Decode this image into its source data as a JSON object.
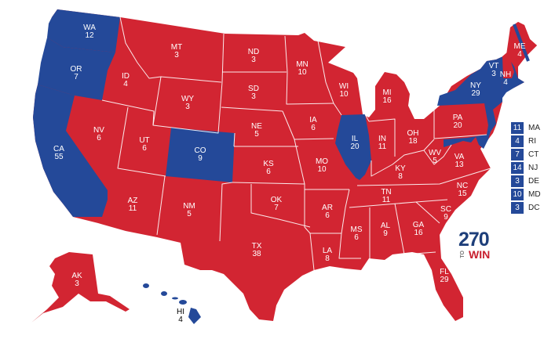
{
  "colors": {
    "republican": "#d22532",
    "democrat": "#244999",
    "border": "#ffffff"
  },
  "states": [
    {
      "abbr": "WA",
      "ev": 12,
      "party": "D"
    },
    {
      "abbr": "OR",
      "ev": 7,
      "party": "D"
    },
    {
      "abbr": "CA",
      "ev": 55,
      "party": "D"
    },
    {
      "abbr": "ID",
      "ev": 4,
      "party": "R"
    },
    {
      "abbr": "NV",
      "ev": 6,
      "party": "R"
    },
    {
      "abbr": "MT",
      "ev": 3,
      "party": "R"
    },
    {
      "abbr": "WY",
      "ev": 3,
      "party": "R"
    },
    {
      "abbr": "UT",
      "ev": 6,
      "party": "R"
    },
    {
      "abbr": "CO",
      "ev": 9,
      "party": "D"
    },
    {
      "abbr": "AZ",
      "ev": 11,
      "party": "R"
    },
    {
      "abbr": "NM",
      "ev": 5,
      "party": "R"
    },
    {
      "abbr": "ND",
      "ev": 3,
      "party": "R"
    },
    {
      "abbr": "SD",
      "ev": 3,
      "party": "R"
    },
    {
      "abbr": "NE",
      "ev": 5,
      "party": "R"
    },
    {
      "abbr": "KS",
      "ev": 6,
      "party": "R"
    },
    {
      "abbr": "OK",
      "ev": 7,
      "party": "R"
    },
    {
      "abbr": "TX",
      "ev": 38,
      "party": "R"
    },
    {
      "abbr": "MN",
      "ev": 10,
      "party": "R"
    },
    {
      "abbr": "IA",
      "ev": 6,
      "party": "R"
    },
    {
      "abbr": "MO",
      "ev": 10,
      "party": "R"
    },
    {
      "abbr": "AR",
      "ev": 6,
      "party": "R"
    },
    {
      "abbr": "LA",
      "ev": 8,
      "party": "R"
    },
    {
      "abbr": "WI",
      "ev": 10,
      "party": "R"
    },
    {
      "abbr": "IL",
      "ev": 20,
      "party": "D"
    },
    {
      "abbr": "MI",
      "ev": 16,
      "party": "R"
    },
    {
      "abbr": "IN",
      "ev": 11,
      "party": "R"
    },
    {
      "abbr": "OH",
      "ev": 18,
      "party": "R"
    },
    {
      "abbr": "KY",
      "ev": 8,
      "party": "R"
    },
    {
      "abbr": "TN",
      "ev": 11,
      "party": "R"
    },
    {
      "abbr": "MS",
      "ev": 6,
      "party": "R"
    },
    {
      "abbr": "AL",
      "ev": 9,
      "party": "R"
    },
    {
      "abbr": "GA",
      "ev": 16,
      "party": "R"
    },
    {
      "abbr": "FL",
      "ev": 29,
      "party": "R"
    },
    {
      "abbr": "SC",
      "ev": 9,
      "party": "R"
    },
    {
      "abbr": "NC",
      "ev": 15,
      "party": "R"
    },
    {
      "abbr": "VA",
      "ev": 13,
      "party": "R"
    },
    {
      "abbr": "WV",
      "ev": 5,
      "party": "R"
    },
    {
      "abbr": "PA",
      "ev": 20,
      "party": "R"
    },
    {
      "abbr": "NY",
      "ev": 29,
      "party": "D"
    },
    {
      "abbr": "VT",
      "ev": 3,
      "party": "D"
    },
    {
      "abbr": "NH",
      "ev": 4,
      "party": "R"
    },
    {
      "abbr": "ME",
      "ev": 4,
      "party": "split"
    },
    {
      "abbr": "AK",
      "ev": 3,
      "party": "R"
    },
    {
      "abbr": "HI",
      "ev": 4,
      "party": "D"
    }
  ],
  "legend": [
    {
      "ev": "11",
      "abbr": "MA",
      "party": "D"
    },
    {
      "ev": "4",
      "abbr": "RI",
      "party": "D"
    },
    {
      "ev": "7",
      "abbr": "CT",
      "party": "D"
    },
    {
      "ev": "14",
      "abbr": "NJ",
      "party": "D"
    },
    {
      "ev": "3",
      "abbr": "DE",
      "party": "D"
    },
    {
      "ev": "10",
      "abbr": "MD",
      "party": "D"
    },
    {
      "ev": "3",
      "abbr": "DC",
      "party": "D"
    }
  ],
  "logo": {
    "number": "270",
    "to": "TO",
    "win": "WIN",
    "number_color": "#1e3f7a",
    "win_color": "#c8202f"
  }
}
